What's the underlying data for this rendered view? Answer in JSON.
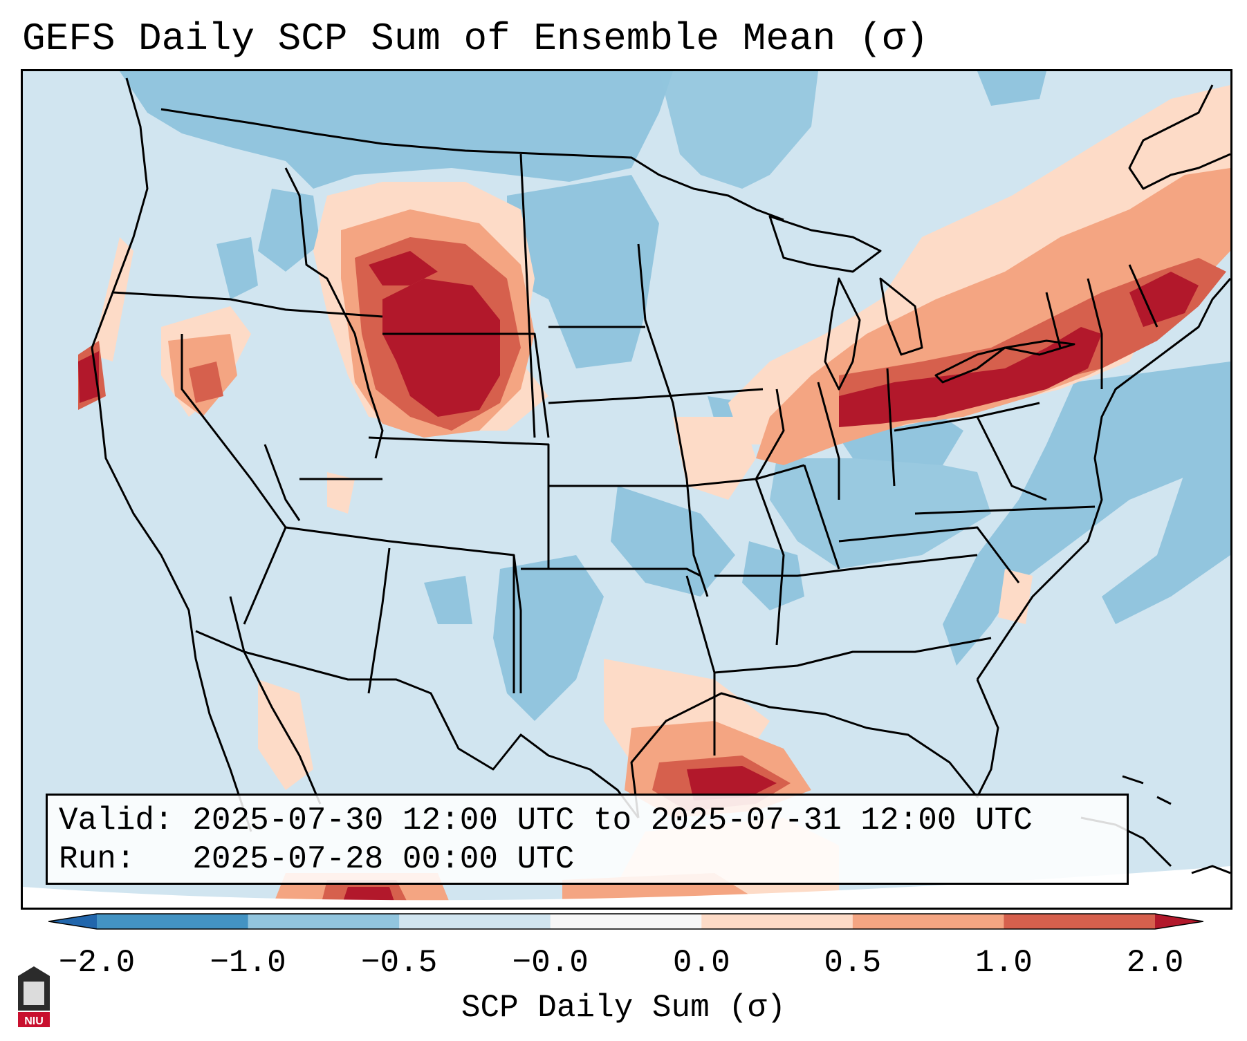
{
  "title": "GEFS Daily SCP Sum of Ensemble Mean (σ)",
  "info": {
    "valid_label": "Valid:",
    "valid_value": "2025-07-30 12:00 UTC to 2025-07-31 12:00 UTC",
    "run_label": "Run:",
    "run_value": "2025-07-28 00:00 UTC"
  },
  "colorbar": {
    "label": "SCP Daily Sum (σ)",
    "ticks": [
      "−2.0",
      "−1.0",
      "−0.5",
      "−0.0",
      "0.0",
      "0.5",
      "1.0",
      "2.0"
    ],
    "bin_colors": [
      "#4393c3",
      "#92c5de",
      "#d1e5f0",
      "#f7f7f7",
      "#fddbc7",
      "#f4a582",
      "#d6604d"
    ],
    "extend_low_color": "#2166ac",
    "extend_high_color": "#b2182b"
  },
  "legend_bins": {
    "strong_negative": "#92c5de",
    "weak_negative": "#d1e5f0",
    "weak_positive": "#fddbc7",
    "moderate_positive": "#f4a582",
    "strong_positive": "#d6604d",
    "extreme_positive": "#b2182b"
  },
  "logo": {
    "text": "NIU",
    "color": "#c8102e"
  }
}
